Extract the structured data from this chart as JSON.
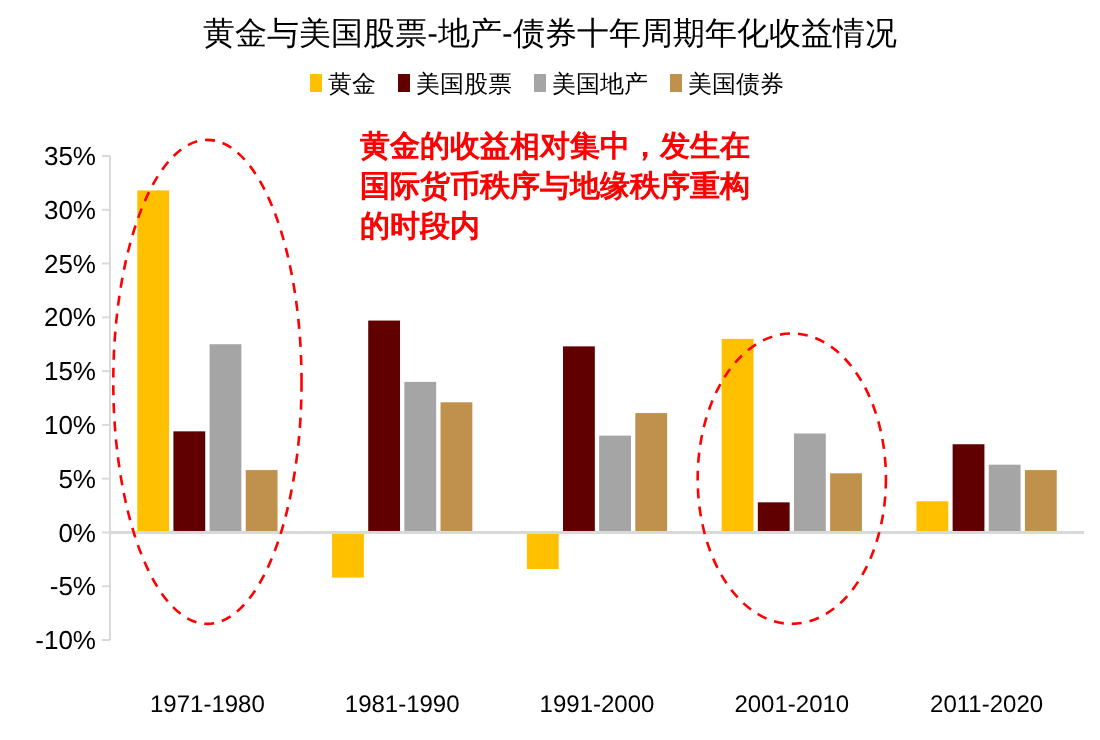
{
  "chart_data": {
    "type": "bar",
    "title": "黄金与美国股票-地产-债券十年周期年化收益情况",
    "categories": [
      "1971-1980",
      "1981-1990",
      "1991-2000",
      "2001-2010",
      "2011-2020"
    ],
    "series": [
      {
        "name": "黄金",
        "color": "#ffc000",
        "values": [
          31.8,
          -4.2,
          -3.4,
          18.0,
          2.9
        ]
      },
      {
        "name": "美国股票",
        "color": "#600000",
        "values": [
          9.4,
          19.7,
          17.3,
          2.8,
          8.2
        ]
      },
      {
        "name": "美国地产",
        "color": "#a5a5a5",
        "values": [
          17.5,
          14.0,
          9.0,
          9.2,
          6.3
        ]
      },
      {
        "name": "美国债券",
        "color": "#c0904d",
        "values": [
          5.8,
          12.1,
          11.1,
          5.5,
          5.8
        ]
      }
    ],
    "ylim": [
      -10,
      35
    ],
    "yticks": [
      {
        "value": -10,
        "label": "-10%"
      },
      {
        "value": -5,
        "label": "-5%"
      },
      {
        "value": 0,
        "label": "0%"
      },
      {
        "value": 5,
        "label": "5%"
      },
      {
        "value": 10,
        "label": "10%"
      },
      {
        "value": 15,
        "label": "15%"
      },
      {
        "value": 20,
        "label": "20%"
      },
      {
        "value": 25,
        "label": "25%"
      },
      {
        "value": 30,
        "label": "30%"
      },
      {
        "value": 35,
        "label": "35%"
      }
    ],
    "legend": "top",
    "annotations": [
      "黄金的收益相对集中，发生在国际货币秩序与地缘秩序重构的时段内"
    ]
  }
}
